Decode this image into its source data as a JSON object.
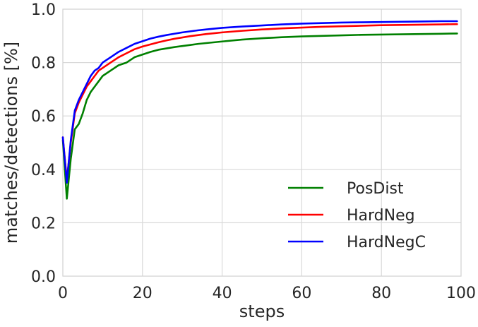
{
  "chart_data": {
    "type": "line",
    "title": "",
    "xlabel": "steps",
    "ylabel": "matches/detections [%]",
    "xlim": [
      0,
      100
    ],
    "ylim": [
      0.0,
      1.0
    ],
    "xticks": [
      0,
      20,
      40,
      60,
      80,
      100
    ],
    "xtick_labels": [
      "0",
      "20",
      "40",
      "60",
      "80",
      "100"
    ],
    "yticks": [
      0.0,
      0.2,
      0.4,
      0.6,
      0.8,
      1.0
    ],
    "ytick_labels": [
      "0.0",
      "0.2",
      "0.4",
      "0.6",
      "0.8",
      "1.0"
    ],
    "grid": true,
    "legend_position": "lower-right",
    "x": [
      0,
      1,
      2,
      3,
      4,
      5,
      6,
      7,
      8,
      9,
      10,
      12,
      14,
      16,
      18,
      20,
      22,
      24,
      26,
      28,
      30,
      32,
      34,
      36,
      38,
      40,
      45,
      50,
      55,
      60,
      65,
      70,
      75,
      80,
      85,
      90,
      95,
      99
    ],
    "series": [
      {
        "name": "PosDist",
        "color": "#008000",
        "values": [
          0.51,
          0.29,
          0.44,
          0.55,
          0.57,
          0.61,
          0.66,
          0.69,
          0.71,
          0.73,
          0.75,
          0.77,
          0.79,
          0.8,
          0.82,
          0.83,
          0.84,
          0.848,
          0.853,
          0.858,
          0.862,
          0.866,
          0.87,
          0.873,
          0.876,
          0.879,
          0.886,
          0.891,
          0.895,
          0.898,
          0.9,
          0.902,
          0.904,
          0.905,
          0.906,
          0.907,
          0.908,
          0.909
        ]
      },
      {
        "name": "HardNeg",
        "color": "#ff0000",
        "values": [
          0.52,
          0.36,
          0.5,
          0.61,
          0.65,
          0.68,
          0.71,
          0.73,
          0.75,
          0.77,
          0.78,
          0.8,
          0.82,
          0.835,
          0.85,
          0.86,
          0.868,
          0.876,
          0.883,
          0.889,
          0.894,
          0.899,
          0.903,
          0.907,
          0.91,
          0.913,
          0.919,
          0.924,
          0.928,
          0.931,
          0.934,
          0.936,
          0.938,
          0.94,
          0.941,
          0.942,
          0.943,
          0.944
        ]
      },
      {
        "name": "HardNegC",
        "color": "#0000ff",
        "values": [
          0.52,
          0.35,
          0.51,
          0.62,
          0.66,
          0.69,
          0.72,
          0.75,
          0.77,
          0.78,
          0.8,
          0.82,
          0.84,
          0.855,
          0.87,
          0.88,
          0.89,
          0.897,
          0.903,
          0.908,
          0.913,
          0.917,
          0.921,
          0.924,
          0.927,
          0.93,
          0.935,
          0.939,
          0.943,
          0.946,
          0.948,
          0.95,
          0.951,
          0.952,
          0.953,
          0.954,
          0.955,
          0.955
        ]
      }
    ]
  }
}
